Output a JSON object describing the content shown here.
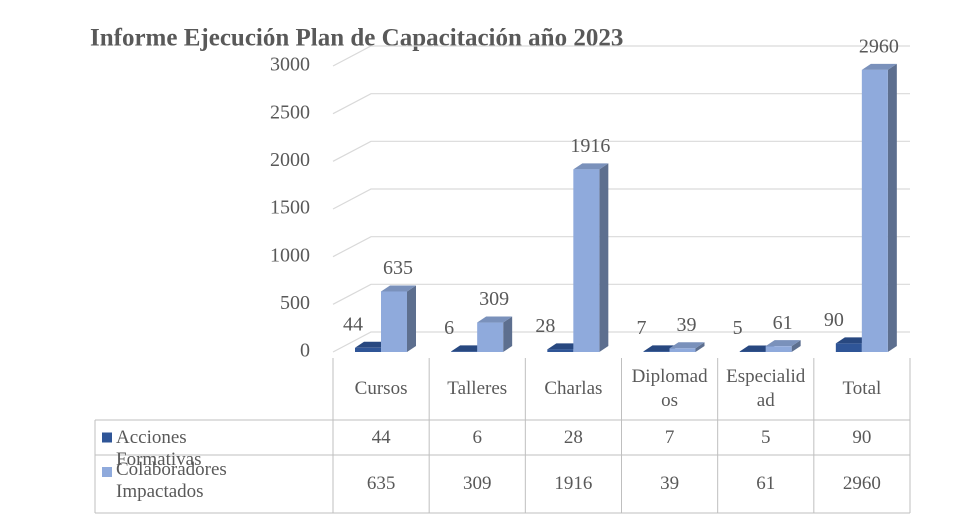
{
  "chart_data": {
    "type": "bar3d",
    "title": "Informe Ejecución Plan de Capacitación año 2023",
    "categories": [
      "Cursos",
      "Talleres",
      "Charlas",
      "Diplomados",
      "Especialidad",
      "Total"
    ],
    "series": [
      {
        "name": "Acciones Formativas",
        "color": "#2f5597",
        "values": [
          44,
          6,
          28,
          7,
          5,
          90
        ]
      },
      {
        "name": "Colaboradores Impactados",
        "color": "#8faadc",
        "values": [
          635,
          309,
          1916,
          39,
          61,
          2960
        ]
      }
    ],
    "ylim": [
      0,
      3000
    ],
    "yticks": [
      0,
      500,
      1000,
      1500,
      2000,
      2500,
      3000
    ],
    "grid": true,
    "data_table": true
  }
}
